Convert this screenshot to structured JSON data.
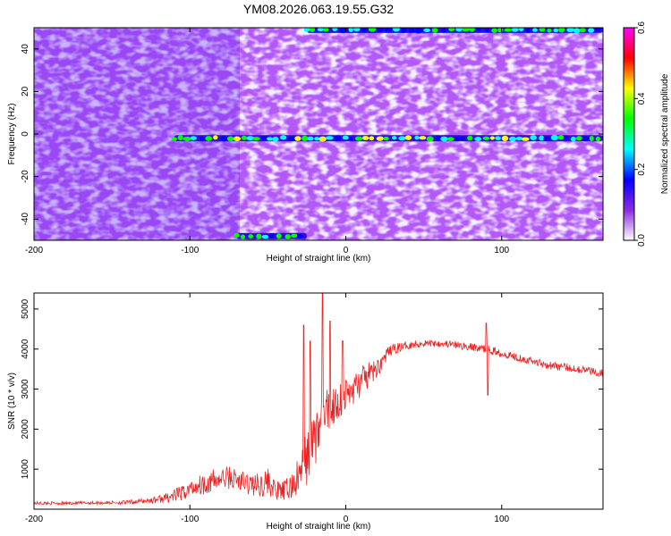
{
  "title": "YM08.2026.063.19.55.G32",
  "chart_data": [
    {
      "type": "heatmap",
      "title": "YM08.2026.063.19.55.G32",
      "xlabel": "Height of straight line (km)",
      "ylabel": "Frequency (Hz)",
      "xlim": [
        -200,
        165
      ],
      "ylim": [
        -50,
        50
      ],
      "x_ticks": [
        -200,
        -100,
        0,
        100
      ],
      "x_tick_labels": [
        "-200",
        "-100",
        "0",
        "100"
      ],
      "y_ticks": [
        -40,
        -20,
        0,
        20,
        40
      ],
      "y_tick_labels": [
        "-40",
        "-20",
        "0",
        "20",
        "40"
      ],
      "colorbar": {
        "label": "Normalized spectral amplitude",
        "range": [
          0,
          0.6
        ],
        "ticks": [
          0,
          0.2,
          0.4,
          0.6
        ],
        "tick_labels": [
          "0.0",
          "0.2",
          "0.4",
          "0.6"
        ],
        "colormap": [
          "#ffffff",
          "#8a2be2",
          "#0000ff",
          "#00ffff",
          "#00ff00",
          "#ffff00",
          "#ff0000",
          "#ff00ff"
        ]
      },
      "features": [
        {
          "description": "tone near 0 Hz",
          "x_start": -110,
          "x_end": 165,
          "frequency": -2,
          "amplitude": 0.3
        },
        {
          "description": "tone at +50 Hz edge",
          "x_start": -25,
          "x_end": 165,
          "frequency": 49,
          "amplitude": 0.25
        },
        {
          "description": "tone at -50 Hz edge",
          "x_start": -70,
          "x_end": -25,
          "frequency": -48,
          "amplitude": 0.25
        }
      ]
    },
    {
      "type": "line",
      "xlabel": "Height of straight line (km)",
      "ylabel": "SNR (10 * v/v)",
      "xlim": [
        -200,
        165
      ],
      "ylim": [
        0,
        5400
      ],
      "x_ticks": [
        -200,
        -100,
        0,
        100
      ],
      "x_tick_labels": [
        "-200",
        "-100",
        "0",
        "100"
      ],
      "y_ticks": [
        1000,
        2000,
        3000,
        4000,
        5000
      ],
      "y_tick_labels": [
        "1000",
        "2000",
        "3000",
        "4000",
        "5000"
      ],
      "color": "#ee2222",
      "series": [
        {
          "name": "SNR",
          "x": [
            -200,
            -180,
            -160,
            -140,
            -125,
            -115,
            -105,
            -95,
            -85,
            -75,
            -65,
            -55,
            -50,
            -45,
            -40,
            -35,
            -30,
            -25,
            -20,
            -15,
            -10,
            -5,
            0,
            5,
            10,
            15,
            20,
            25,
            30,
            40,
            50,
            60,
            70,
            80,
            90,
            100,
            110,
            120,
            130,
            140,
            150,
            165
          ],
          "y": [
            150,
            150,
            160,
            170,
            220,
            280,
            400,
            600,
            700,
            800,
            650,
            600,
            700,
            450,
            450,
            550,
            800,
            1300,
            1800,
            2200,
            2500,
            2700,
            2850,
            3000,
            3200,
            3350,
            3500,
            3800,
            4000,
            4100,
            4150,
            4150,
            4100,
            4050,
            4000,
            3900,
            3800,
            3700,
            3600,
            3550,
            3500,
            3400
          ],
          "amplitude": [
            40,
            40,
            40,
            50,
            80,
            120,
            200,
            250,
            300,
            300,
            300,
            300,
            350,
            250,
            250,
            350,
            500,
            700,
            800,
            700,
            600,
            500,
            450,
            400,
            380,
            320,
            250,
            180,
            130,
            100,
            100,
            100,
            100,
            100,
            100,
            100,
            100,
            100,
            100,
            100,
            100,
            100
          ],
          "spikes": [
            {
              "x": -27,
              "y": 4600
            },
            {
              "x": -23,
              "y": 4200
            },
            {
              "x": -15,
              "y": 5400
            },
            {
              "x": -10,
              "y": 4700
            },
            {
              "x": -2,
              "y": 4200
            },
            {
              "x": 90,
              "y": 4650
            },
            {
              "x": 91,
              "y": 2850
            }
          ]
        }
      ]
    }
  ]
}
